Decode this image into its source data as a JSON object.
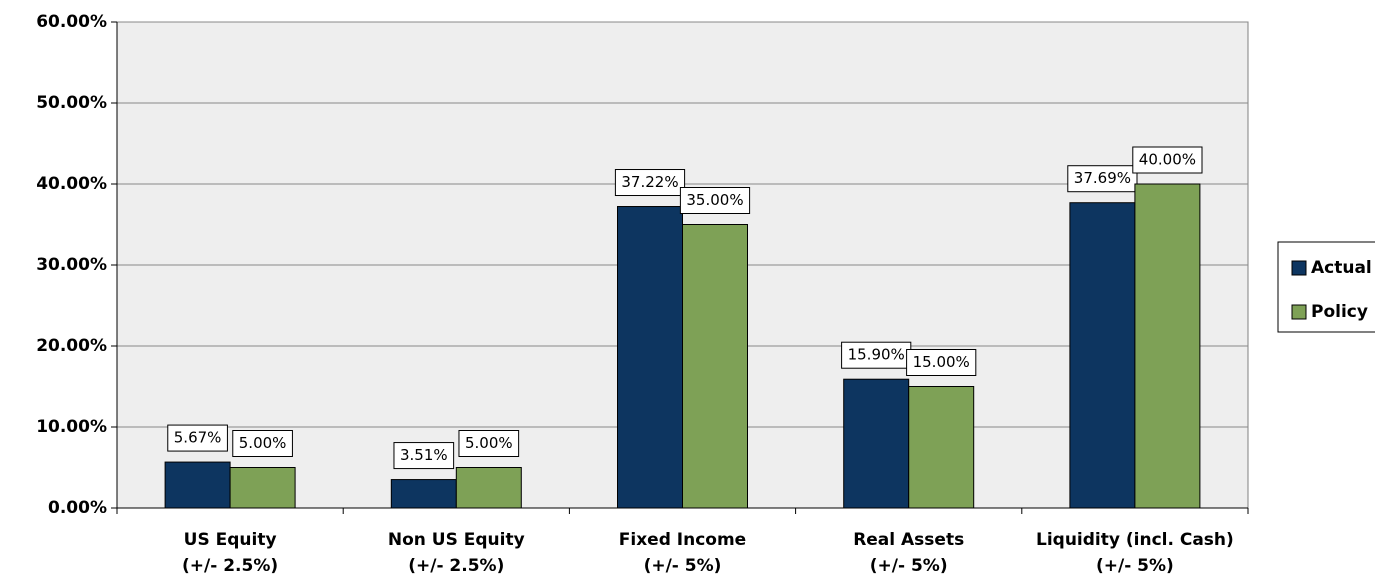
{
  "chart_data": {
    "type": "bar",
    "categories": [
      [
        "US Equity",
        "(+/- 2.5%)"
      ],
      [
        "Non US Equity",
        "(+/- 2.5%)"
      ],
      [
        "Fixed Income",
        "(+/- 5%)"
      ],
      [
        "Real Assets",
        "(+/- 5%)"
      ],
      [
        "Liquidity (incl. Cash)",
        "(+/- 5%)"
      ]
    ],
    "series": [
      {
        "name": "Actual",
        "color": "#0d3560",
        "values": [
          5.67,
          3.51,
          37.22,
          15.9,
          37.69
        ],
        "value_labels": [
          "5.67%",
          "3.51%",
          "37.22%",
          "15.90%",
          "37.69%"
        ]
      },
      {
        "name": "Policy",
        "color": "#7ea156",
        "values": [
          5.0,
          5.0,
          35.0,
          15.0,
          40.0
        ],
        "value_labels": [
          "5.00%",
          "5.00%",
          "35.00%",
          "15.00%",
          "40.00%"
        ]
      }
    ],
    "ylim": [
      0,
      60
    ],
    "yticks": [
      {
        "value": 0,
        "label": "0.00%"
      },
      {
        "value": 10,
        "label": "10.00%"
      },
      {
        "value": 20,
        "label": "20.00%"
      },
      {
        "value": 30,
        "label": "30.00%"
      },
      {
        "value": 40,
        "label": "40.00%"
      },
      {
        "value": 50,
        "label": "50.00%"
      },
      {
        "value": 60,
        "label": "60.00%"
      }
    ],
    "grid": true,
    "legend": "right"
  }
}
